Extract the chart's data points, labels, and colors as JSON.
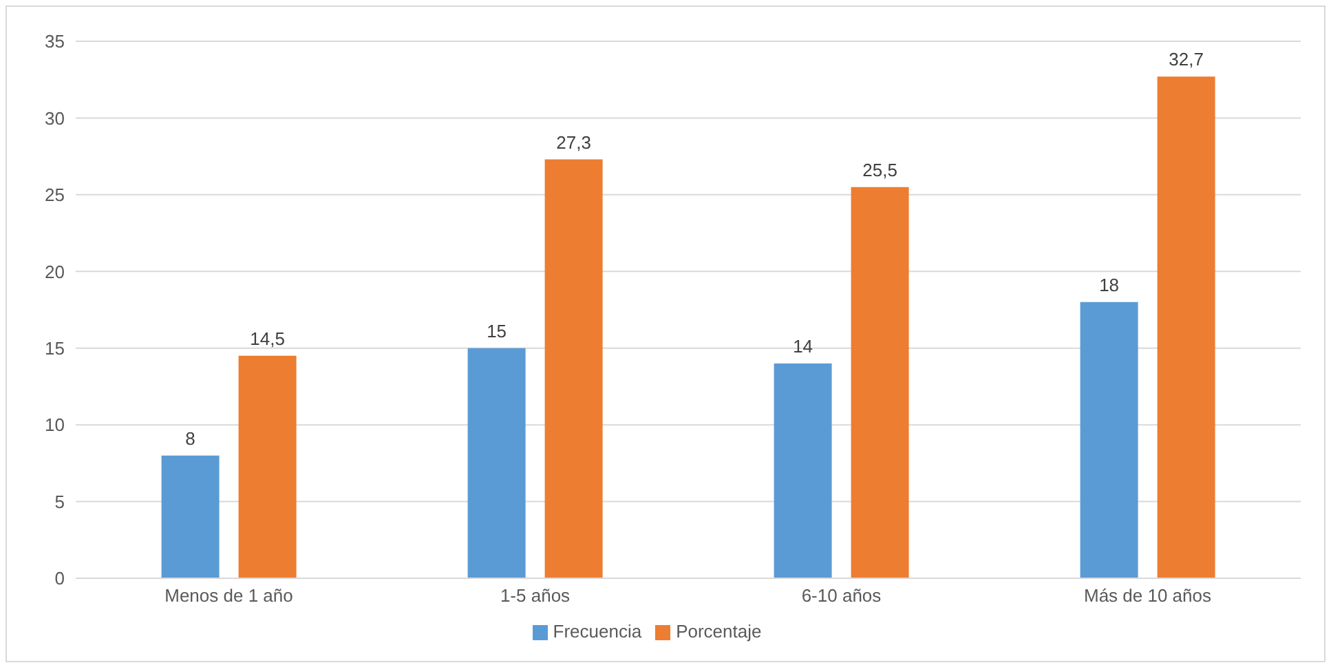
{
  "chart_data": {
    "type": "bar",
    "categories": [
      "Menos de 1 año",
      "1-5 años",
      "6-10 años",
      "Más de 10 años"
    ],
    "series": [
      {
        "name": "Frecuencia",
        "color": "#5b9bd5",
        "values": [
          8,
          15,
          14,
          18
        ],
        "value_labels": [
          "8",
          "15",
          "14",
          "18"
        ]
      },
      {
        "name": "Porcentaje",
        "color": "#ed7d31",
        "values": [
          14.5,
          27.3,
          25.5,
          32.7
        ],
        "value_labels": [
          "14,5",
          "27,3",
          "25,5",
          "32,7"
        ]
      }
    ],
    "ylim": [
      0,
      35
    ],
    "yticks": [
      0,
      5,
      10,
      15,
      20,
      25,
      30,
      35
    ],
    "grid": "y",
    "legend": "bottom"
  }
}
